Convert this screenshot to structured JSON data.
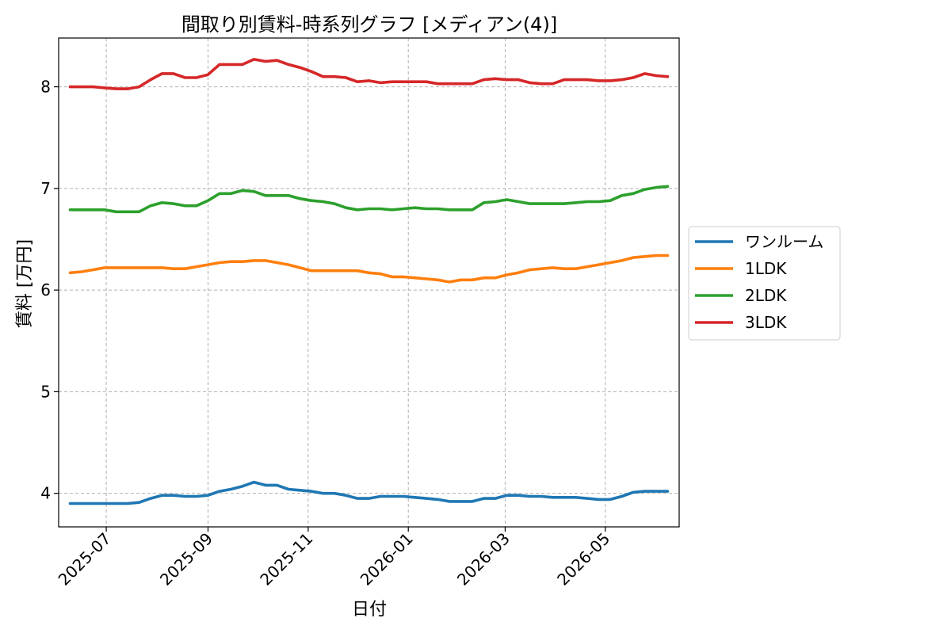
{
  "chart_data": {
    "type": "line",
    "title": "間取り別賃料-時系列グラフ [メディアン(4)]",
    "xlabel": "日付",
    "ylabel": "賃料 [万円]",
    "x_type": "date",
    "xlim": [
      "2025-06-02",
      "2026-06-15"
    ],
    "ylim": [
      3.67,
      8.48
    ],
    "x_ticks": [
      "2025-07-01",
      "2025-09-01",
      "2025-11-01",
      "2026-01-01",
      "2026-03-01",
      "2026-05-01"
    ],
    "x_tick_labels": [
      "2025-07",
      "2025-09",
      "2025-11",
      "2026-01",
      "2026-03",
      "2026-05"
    ],
    "y_ticks": [
      4,
      5,
      6,
      7,
      8
    ],
    "y_tick_labels": [
      "4",
      "5",
      "6",
      "7",
      "8"
    ],
    "grid": true,
    "legend_position": "outside-right",
    "dates": [
      "2025-06-09",
      "2025-06-16",
      "2025-06-23",
      "2025-06-30",
      "2025-07-07",
      "2025-07-14",
      "2025-07-21",
      "2025-07-28",
      "2025-08-04",
      "2025-08-11",
      "2025-08-18",
      "2025-08-25",
      "2025-09-01",
      "2025-09-08",
      "2025-09-15",
      "2025-09-22",
      "2025-09-29",
      "2025-10-06",
      "2025-10-13",
      "2025-10-20",
      "2025-10-27",
      "2025-11-03",
      "2025-11-10",
      "2025-11-17",
      "2025-11-24",
      "2025-12-01",
      "2025-12-08",
      "2025-12-15",
      "2025-12-22",
      "2025-12-29",
      "2026-01-05",
      "2026-01-12",
      "2026-01-19",
      "2026-01-26",
      "2026-02-02",
      "2026-02-09",
      "2026-02-16",
      "2026-02-23",
      "2026-03-02",
      "2026-03-09",
      "2026-03-16",
      "2026-03-23",
      "2026-03-30",
      "2026-04-06",
      "2026-04-13",
      "2026-04-20",
      "2026-04-27",
      "2026-05-04",
      "2026-05-11",
      "2026-05-18",
      "2026-05-25",
      "2026-06-01",
      "2026-06-08"
    ],
    "series": [
      {
        "name": "ワンルーム",
        "color": "#1f77b4",
        "values": [
          3.9,
          3.9,
          3.9,
          3.9,
          3.9,
          3.9,
          3.91,
          3.95,
          3.98,
          3.98,
          3.97,
          3.97,
          3.98,
          4.02,
          4.04,
          4.07,
          4.11,
          4.08,
          4.08,
          4.04,
          4.03,
          4.02,
          4.0,
          4.0,
          3.98,
          3.95,
          3.95,
          3.97,
          3.97,
          3.97,
          3.96,
          3.95,
          3.94,
          3.92,
          3.92,
          3.92,
          3.95,
          3.95,
          3.98,
          3.98,
          3.97,
          3.97,
          3.96,
          3.96,
          3.96,
          3.95,
          3.94,
          3.94,
          3.97,
          4.01,
          4.02,
          4.02,
          4.02
        ]
      },
      {
        "name": "1LDK",
        "color": "#ff7f0e",
        "values": [
          6.17,
          6.18,
          6.2,
          6.22,
          6.22,
          6.22,
          6.22,
          6.22,
          6.22,
          6.21,
          6.21,
          6.23,
          6.25,
          6.27,
          6.28,
          6.28,
          6.29,
          6.29,
          6.27,
          6.25,
          6.22,
          6.19,
          6.19,
          6.19,
          6.19,
          6.19,
          6.17,
          6.16,
          6.13,
          6.13,
          6.12,
          6.11,
          6.1,
          6.08,
          6.1,
          6.1,
          6.12,
          6.12,
          6.15,
          6.17,
          6.2,
          6.21,
          6.22,
          6.21,
          6.21,
          6.23,
          6.25,
          6.27,
          6.29,
          6.32,
          6.33,
          6.34,
          6.34
        ]
      },
      {
        "name": "2LDK",
        "color": "#2ca02c",
        "values": [
          6.79,
          6.79,
          6.79,
          6.79,
          6.77,
          6.77,
          6.77,
          6.83,
          6.86,
          6.85,
          6.83,
          6.83,
          6.88,
          6.95,
          6.95,
          6.98,
          6.97,
          6.93,
          6.93,
          6.93,
          6.9,
          6.88,
          6.87,
          6.85,
          6.81,
          6.79,
          6.8,
          6.8,
          6.79,
          6.8,
          6.81,
          6.8,
          6.8,
          6.79,
          6.79,
          6.79,
          6.86,
          6.87,
          6.89,
          6.87,
          6.85,
          6.85,
          6.85,
          6.85,
          6.86,
          6.87,
          6.87,
          6.88,
          6.93,
          6.95,
          6.99,
          7.01,
          7.02
        ]
      },
      {
        "name": "3LDK",
        "color": "#d62728",
        "values": [
          8.0,
          8.0,
          8.0,
          7.99,
          7.98,
          7.98,
          8.0,
          8.07,
          8.13,
          8.13,
          8.09,
          8.09,
          8.12,
          8.22,
          8.22,
          8.22,
          8.27,
          8.25,
          8.26,
          8.22,
          8.19,
          8.15,
          8.1,
          8.1,
          8.09,
          8.05,
          8.06,
          8.04,
          8.05,
          8.05,
          8.05,
          8.05,
          8.03,
          8.03,
          8.03,
          8.03,
          8.07,
          8.08,
          8.07,
          8.07,
          8.04,
          8.03,
          8.03,
          8.07,
          8.07,
          8.07,
          8.06,
          8.06,
          8.07,
          8.09,
          8.13,
          8.11,
          8.1
        ]
      }
    ]
  }
}
